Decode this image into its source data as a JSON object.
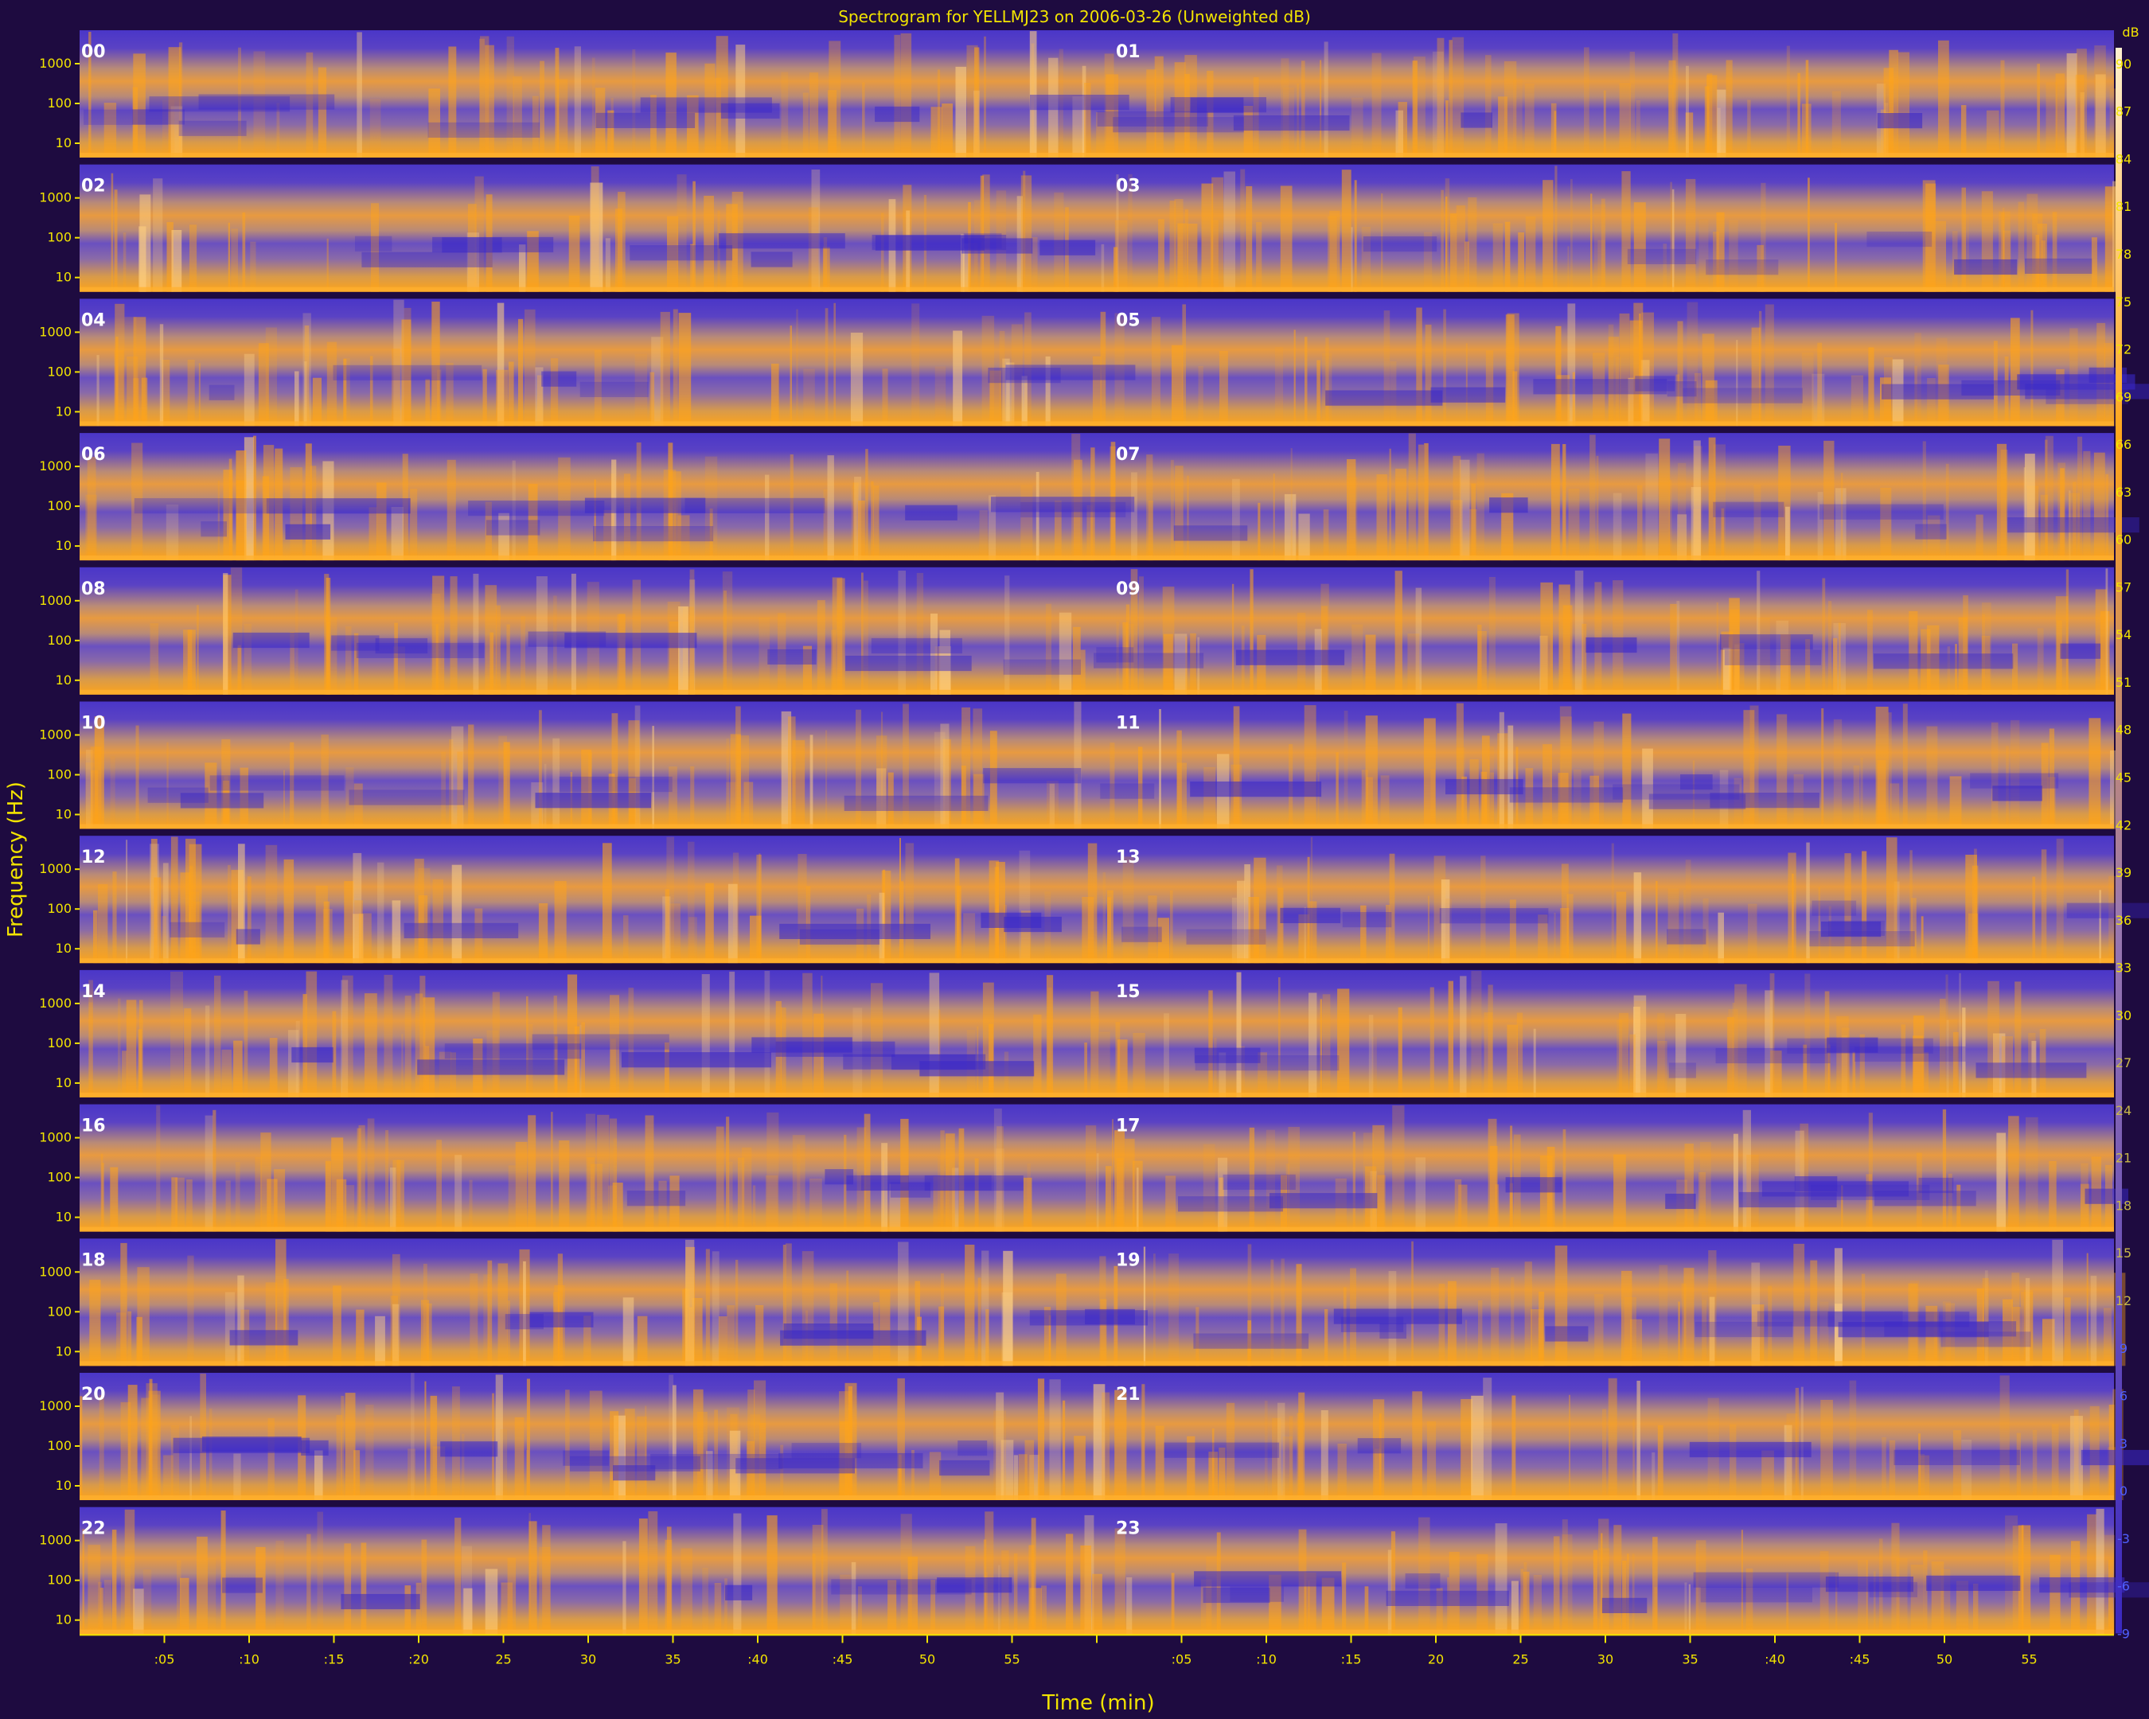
{
  "chart_data": {
    "type": "heatmap",
    "title": "Spectrogram for YELLMJ23 on 2006-03-26 (Unweighted dB)",
    "xlabel": "Time (min)",
    "ylabel": "Frequency (Hz)",
    "colorbar_unit": "dB",
    "colorbar_ticks": [
      90,
      87,
      84,
      81,
      78,
      75,
      72,
      69,
      66,
      63,
      60,
      57,
      54,
      51,
      48,
      45,
      42,
      39,
      36,
      33,
      30,
      27,
      24,
      21,
      18,
      15,
      12,
      9,
      6,
      3,
      0,
      -3,
      -6,
      -9
    ],
    "colorbar_range": [
      -9,
      91
    ],
    "hour_labels": [
      "00",
      "01",
      "02",
      "03",
      "04",
      "05",
      "06",
      "07",
      "08",
      "09",
      "10",
      "11",
      "12",
      "13",
      "14",
      "15",
      "16",
      "17",
      "18",
      "19",
      "20",
      "21",
      "22",
      "23"
    ],
    "freq_ticks": [
      "1000",
      "100",
      "10"
    ],
    "x_tick_labels": [
      ":05",
      ":10",
      ":15",
      ":20",
      "25",
      "30",
      "35",
      ":40",
      ":45",
      "50",
      "55",
      "",
      ":05",
      ":10",
      ":15",
      "20",
      "25",
      "30",
      "35",
      ":40",
      ":45",
      "50",
      "55"
    ],
    "minutes_per_hour": 60,
    "hours_per_row": 2,
    "rows": 12,
    "colors": {
      "low": "#4a36c8",
      "mid": "#9a78b0",
      "high": "#ffa418",
      "peak": "#fff0d0",
      "background": "#1e0b40",
      "text": "#f2e400"
    }
  }
}
